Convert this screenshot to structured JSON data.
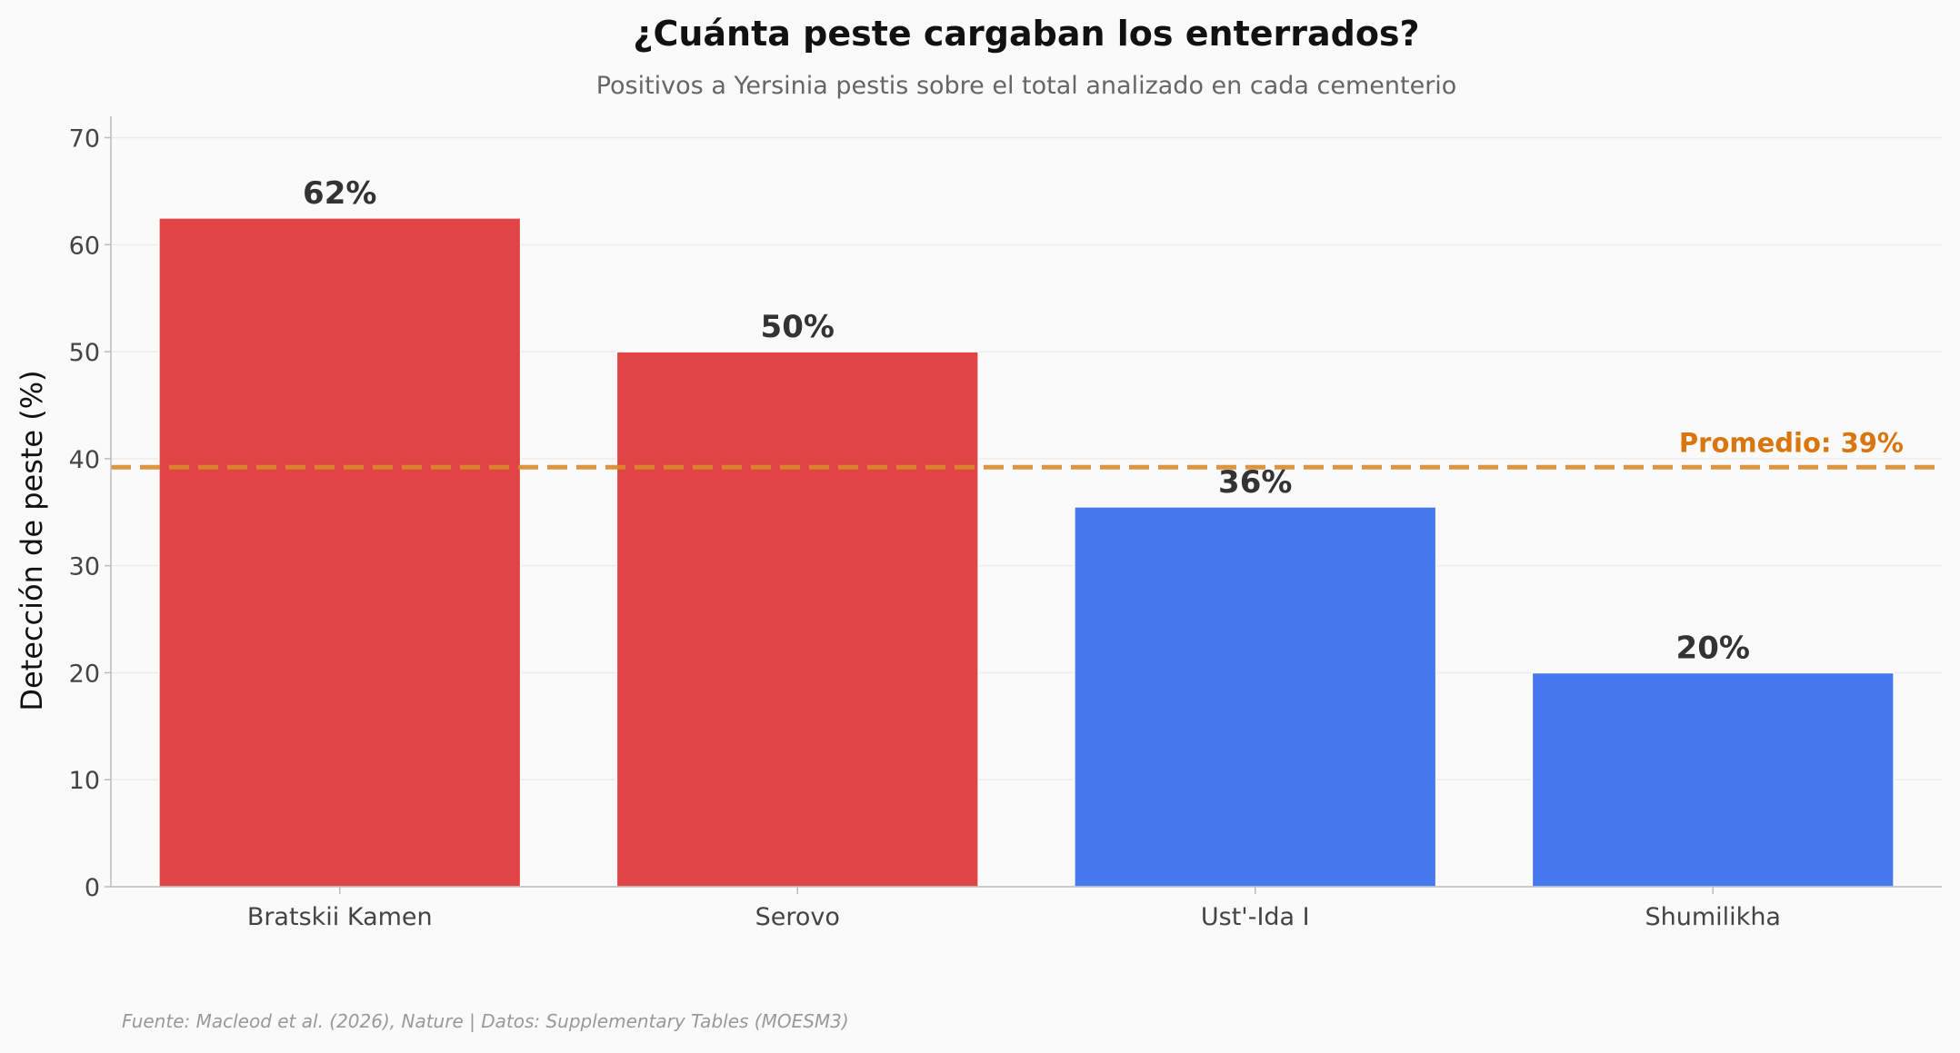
{
  "chart_data": {
    "type": "bar",
    "title": "¿Cuánta peste cargaban los enterrados?",
    "subtitle": "Positivos a Yersinia pestis sobre el total analizado en cada cementerio",
    "xlabel": "",
    "ylabel": "Detección de peste (%)",
    "categories": [
      "Bratskii Kamen",
      "Serovo",
      "Ust'-Ida I",
      "Shumilikha"
    ],
    "values": [
      62.5,
      50.0,
      35.5,
      20.0
    ],
    "value_labels": [
      "62%",
      "50%",
      "36%",
      "20%"
    ],
    "bar_colors": [
      "#e04444",
      "#e04444",
      "#4779ee",
      "#4779ee"
    ],
    "ylim": [
      0,
      72
    ],
    "yticks": [
      0,
      10,
      20,
      30,
      40,
      50,
      60,
      70
    ],
    "grid": "horizontal",
    "reference_line": {
      "value": 39.2,
      "label": "Promedio: 39%",
      "color": "#d98a2b",
      "style": "dashed"
    },
    "source": "Fuente: Macleod et al. (2026), Nature | Datos: Supplementary Tables (MOESM3)"
  }
}
